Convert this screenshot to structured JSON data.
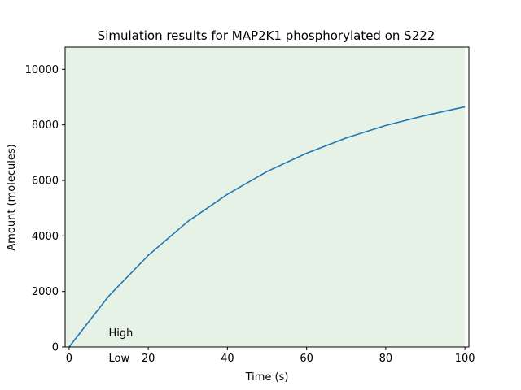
{
  "chart_data": {
    "type": "line",
    "title": "Simulation results for MAP2K1 phosphorylated on S222",
    "xlabel": "Time (s)",
    "ylabel": "Amount (molecules)",
    "xlim": [
      -1,
      101
    ],
    "ylim": [
      0,
      10800
    ],
    "x_ticks": [
      0,
      20,
      40,
      60,
      80,
      100
    ],
    "y_ticks": [
      0,
      2000,
      4000,
      6000,
      8000,
      10000
    ],
    "grid": false,
    "legend": "none",
    "background_band": {
      "color": "#e5f2e5",
      "x_from": -1,
      "x_to": 100
    },
    "series": [
      {
        "color": "#1f77b4",
        "x": [
          0,
          10,
          20,
          30,
          40,
          50,
          60,
          70,
          80,
          90,
          100
        ],
        "y": [
          0,
          1830,
          3300,
          4520,
          5500,
          6320,
          6980,
          7530,
          7980,
          8340,
          8650
        ]
      }
    ],
    "annotations": [
      {
        "text": "High",
        "x": 10,
        "y": 520
      },
      {
        "text": "Low",
        "x": 10,
        "y": -380
      }
    ]
  }
}
